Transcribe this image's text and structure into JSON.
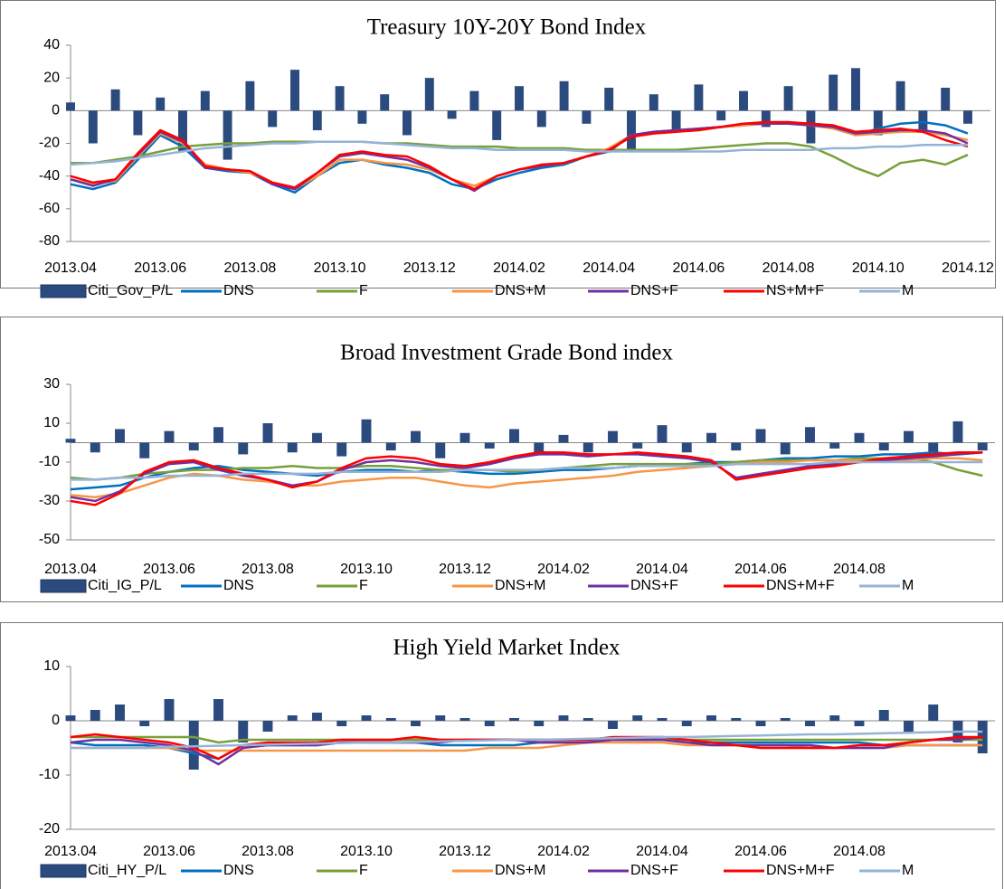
{
  "chart_data": [
    {
      "type": "combo",
      "title": "Treasury 10Y-20Y Bond Index",
      "categories": [
        "2013.04",
        null,
        null,
        null,
        "2013.06",
        null,
        null,
        null,
        "2013.08",
        null,
        null,
        null,
        "2013.10",
        null,
        null,
        null,
        "2013.12",
        null,
        null,
        null,
        "2014.02",
        null,
        null,
        null,
        "2014.04",
        null,
        null,
        null,
        "2014.06",
        null,
        null,
        null,
        "2014.08",
        null,
        null,
        null,
        "2014.10",
        null,
        null,
        null,
        "2014.12"
      ],
      "ylim": [
        -80,
        40
      ],
      "yticks": [
        -80,
        -60,
        -40,
        -20,
        0,
        20,
        40
      ],
      "series": [
        {
          "name": "Citi_Gov_P/L",
          "type": "bar",
          "color": "#2b4a7e",
          "values": [
            5,
            -20,
            13,
            -15,
            8,
            -25,
            12,
            -30,
            18,
            -10,
            25,
            -12,
            15,
            -8,
            10,
            -15,
            20,
            -5,
            12,
            -18,
            15,
            -10,
            18,
            -8,
            14,
            -25,
            10,
            -12,
            16,
            -6,
            12,
            -10,
            15,
            -20,
            22,
            26,
            -15,
            18,
            -12,
            14,
            -8
          ]
        },
        {
          "name": "DNS",
          "type": "line",
          "color": "#0070c0",
          "values": [
            -45,
            -48,
            -44,
            -30,
            -15,
            -22,
            -35,
            -37,
            -38,
            -45,
            -50,
            -40,
            -32,
            -30,
            -33,
            -35,
            -38,
            -45,
            -48,
            -42,
            -38,
            -35,
            -33,
            -28,
            -25,
            -15,
            -13,
            -12,
            -11,
            -10,
            -9,
            -8,
            -8,
            -8,
            -9,
            -15,
            -11,
            -8,
            -7,
            -9,
            -14
          ]
        },
        {
          "name": "F",
          "type": "line",
          "color": "#77a03a",
          "values": [
            -32,
            -32,
            -30,
            -28,
            -25,
            -22,
            -21,
            -20,
            -20,
            -19,
            -19,
            -19,
            -19,
            -19,
            -20,
            -20,
            -21,
            -22,
            -22,
            -22,
            -23,
            -23,
            -23,
            -24,
            -24,
            -24,
            -24,
            -24,
            -23,
            -22,
            -21,
            -20,
            -20,
            -22,
            -28,
            -35,
            -40,
            -32,
            -30,
            -33,
            -27
          ]
        },
        {
          "name": "DNS+M",
          "type": "line",
          "color": "#f79646",
          "values": [
            -42,
            -45,
            -43,
            -28,
            -14,
            -20,
            -33,
            -36,
            -38,
            -44,
            -48,
            -40,
            -30,
            -30,
            -32,
            -33,
            -36,
            -42,
            -46,
            -40,
            -36,
            -34,
            -32,
            -28,
            -23,
            -15,
            -13,
            -12,
            -11,
            -10,
            -9,
            -8,
            -8,
            -9,
            -11,
            -15,
            -14,
            -13,
            -13,
            -15,
            -18
          ]
        },
        {
          "name": "DNS+F",
          "type": "line",
          "color": "#7030a0",
          "values": [
            -42,
            -46,
            -42,
            -27,
            -13,
            -19,
            -35,
            -36,
            -37,
            -45,
            -48,
            -38,
            -28,
            -26,
            -28,
            -30,
            -35,
            -42,
            -49,
            -40,
            -36,
            -34,
            -32,
            -28,
            -25,
            -15,
            -13,
            -12,
            -11,
            -10,
            -8,
            -8,
            -8,
            -9,
            -10,
            -14,
            -13,
            -12,
            -12,
            -14,
            -20
          ]
        },
        {
          "name": "NS+M+F",
          "type": "line",
          "color": "#ff0000",
          "values": [
            -40,
            -44,
            -42,
            -26,
            -12,
            -18,
            -34,
            -36,
            -37,
            -44,
            -47,
            -38,
            -27,
            -25,
            -27,
            -28,
            -34,
            -42,
            -48,
            -40,
            -36,
            -33,
            -32,
            -28,
            -24,
            -16,
            -14,
            -13,
            -12,
            -10,
            -8,
            -7,
            -7,
            -8,
            -9,
            -13,
            -12,
            -11,
            -13,
            -18,
            -22
          ]
        },
        {
          "name": "M",
          "type": "line",
          "color": "#95b3d7",
          "values": [
            -33,
            -32,
            -31,
            -29,
            -27,
            -25,
            -23,
            -22,
            -21,
            -20,
            -20,
            -19,
            -19,
            -19,
            -20,
            -21,
            -22,
            -23,
            -23,
            -24,
            -24,
            -24,
            -24,
            -25,
            -25,
            -25,
            -25,
            -25,
            -25,
            -25,
            -24,
            -24,
            -24,
            -24,
            -23,
            -23,
            -22,
            -22,
            -21,
            -21,
            -21
          ]
        }
      ]
    },
    {
      "type": "combo",
      "title": "Broad Investment Grade Bond index",
      "categories": [
        "2013.04",
        null,
        null,
        null,
        "2013.06",
        null,
        null,
        null,
        "2013.08",
        null,
        null,
        null,
        "2013.10",
        null,
        null,
        null,
        "2013.12",
        null,
        null,
        null,
        "2014.02",
        null,
        null,
        null,
        "2014.04",
        null,
        null,
        null,
        "2014.06",
        null,
        null,
        null,
        "2014.08",
        null,
        null,
        null,
        null,
        null
      ],
      "ylim": [
        -50,
        30
      ],
      "yticks": [
        -50,
        -30,
        -10,
        10,
        30
      ],
      "series": [
        {
          "name": "Citi_IG_P/L",
          "type": "bar",
          "color": "#2b4a7e",
          "values": [
            2,
            -5,
            7,
            -8,
            6,
            -4,
            8,
            -6,
            10,
            -5,
            5,
            -7,
            12,
            -4,
            6,
            -8,
            5,
            -3,
            7,
            -6,
            4,
            -5,
            6,
            -3,
            9,
            -5,
            5,
            -4,
            7,
            -6,
            8,
            -3,
            5,
            -4,
            6,
            -5,
            11,
            -4
          ]
        },
        {
          "name": "DNS",
          "type": "line",
          "color": "#0070c0",
          "values": [
            -24,
            -23,
            -22,
            -18,
            -15,
            -13,
            -12,
            -14,
            -15,
            -16,
            -17,
            -15,
            -14,
            -14,
            -15,
            -14,
            -15,
            -16,
            -16,
            -15,
            -14,
            -14,
            -13,
            -12,
            -12,
            -11,
            -10,
            -10,
            -9,
            -8,
            -8,
            -7,
            -7,
            -6,
            -6,
            -5,
            -6,
            -5
          ]
        },
        {
          "name": "F",
          "type": "line",
          "color": "#77a03a",
          "values": [
            -18,
            -19,
            -18,
            -16,
            -15,
            -14,
            -14,
            -13,
            -13,
            -12,
            -13,
            -13,
            -12,
            -12,
            -13,
            -14,
            -14,
            -14,
            -15,
            -14,
            -13,
            -12,
            -11,
            -11,
            -11,
            -11,
            -11,
            -10,
            -9,
            -9,
            -9,
            -9,
            -8,
            -8,
            -8,
            -10,
            -14,
            -17
          ]
        },
        {
          "name": "DNS+M",
          "type": "line",
          "color": "#f79646",
          "values": [
            -27,
            -28,
            -26,
            -22,
            -18,
            -16,
            -17,
            -19,
            -20,
            -22,
            -22,
            -20,
            -19,
            -18,
            -18,
            -20,
            -22,
            -23,
            -21,
            -20,
            -19,
            -18,
            -17,
            -15,
            -14,
            -13,
            -12,
            -11,
            -10,
            -10,
            -9,
            -9,
            -9,
            -9,
            -9,
            -8,
            -8,
            -9
          ]
        },
        {
          "name": "DNS+F",
          "type": "line",
          "color": "#7030a0",
          "values": [
            -28,
            -30,
            -25,
            -16,
            -11,
            -10,
            -14,
            -17,
            -19,
            -22,
            -20,
            -14,
            -10,
            -9,
            -10,
            -12,
            -13,
            -11,
            -8,
            -6,
            -6,
            -7,
            -6,
            -6,
            -7,
            -8,
            -10,
            -18,
            -16,
            -14,
            -12,
            -11,
            -10,
            -9,
            -8,
            -7,
            -6,
            -5
          ]
        },
        {
          "name": "DNS+M+F",
          "type": "line",
          "color": "#ff0000",
          "values": [
            -30,
            -32,
            -26,
            -15,
            -10,
            -9,
            -13,
            -16,
            -19,
            -23,
            -20,
            -13,
            -8,
            -7,
            -8,
            -11,
            -12,
            -10,
            -7,
            -5,
            -5,
            -6,
            -6,
            -5,
            -6,
            -7,
            -9,
            -19,
            -17,
            -15,
            -13,
            -12,
            -10,
            -8,
            -7,
            -6,
            -5,
            -5
          ]
        },
        {
          "name": "M",
          "type": "line",
          "color": "#95b3d7",
          "values": [
            -19,
            -19,
            -18,
            -18,
            -17,
            -17,
            -17,
            -16,
            -16,
            -16,
            -16,
            -15,
            -15,
            -15,
            -15,
            -15,
            -14,
            -14,
            -14,
            -14,
            -13,
            -13,
            -13,
            -12,
            -12,
            -12,
            -12,
            -11,
            -11,
            -11,
            -11,
            -10,
            -10,
            -10,
            -10,
            -10,
            -10,
            -10
          ]
        }
      ]
    },
    {
      "type": "combo",
      "title": "High Yield Market Index",
      "categories": [
        "2013.04",
        null,
        null,
        null,
        "2013.06",
        null,
        null,
        null,
        "2013.08",
        null,
        null,
        null,
        "2013.10",
        null,
        null,
        null,
        "2013.12",
        null,
        null,
        null,
        "2014.02",
        null,
        null,
        null,
        "2014.04",
        null,
        null,
        null,
        "2014.06",
        null,
        null,
        null,
        "2014.08",
        null,
        null,
        null,
        null,
        null
      ],
      "ylim": [
        -20,
        10
      ],
      "yticks": [
        -20,
        -10,
        0,
        10
      ],
      "series": [
        {
          "name": "Citi_HY_P/L",
          "type": "bar",
          "color": "#2b4a7e",
          "values": [
            1,
            2,
            3,
            -1,
            4,
            -9,
            4,
            -4,
            -2,
            1,
            1.5,
            -1,
            1,
            0.5,
            -1,
            1,
            0.5,
            -1,
            0.5,
            -1,
            1,
            0.5,
            -1.5,
            1,
            0.5,
            -1,
            1,
            0.5,
            -1,
            0.5,
            -1,
            1,
            -1,
            2,
            -2,
            3,
            -4,
            -6
          ]
        },
        {
          "name": "DNS",
          "type": "line",
          "color": "#0070c0",
          "values": [
            -4,
            -4.5,
            -4.5,
            -4.5,
            -5,
            -6,
            -7,
            -4.5,
            -4.5,
            -4.5,
            -4.5,
            -4,
            -4,
            -4,
            -4,
            -4.5,
            -4.5,
            -4.5,
            -4.5,
            -4,
            -4,
            -4,
            -3.5,
            -3.5,
            -3.5,
            -4,
            -4,
            -4,
            -4,
            -4,
            -4,
            -4,
            -4,
            -4.5,
            -4.5,
            -4.5,
            -4.5,
            -4.5
          ]
        },
        {
          "name": "F",
          "type": "line",
          "color": "#77a03a",
          "values": [
            -3,
            -3,
            -3,
            -3,
            -3,
            -3,
            -4,
            -3.5,
            -3.5,
            -3.5,
            -3.5,
            -3.5,
            -3.5,
            -3.5,
            -3.5,
            -3.5,
            -3.5,
            -3.5,
            -3.5,
            -3.5,
            -3.5,
            -3.5,
            -3.5,
            -3.5,
            -3.5,
            -3.5,
            -3.5,
            -3.5,
            -3.5,
            -3.5,
            -3.5,
            -3.5,
            -3.5,
            -3.5,
            -3.5,
            -3.5,
            -3.5,
            -3.5
          ]
        },
        {
          "name": "DNS+M",
          "type": "line",
          "color": "#f79646",
          "values": [
            -5,
            -5,
            -5,
            -5,
            -5,
            -5.5,
            -5.5,
            -5.5,
            -5.5,
            -5.5,
            -5.5,
            -5.5,
            -5.5,
            -5.5,
            -5.5,
            -5.5,
            -5.5,
            -5,
            -5,
            -5,
            -4.5,
            -4,
            -4,
            -4,
            -4,
            -4.5,
            -4.5,
            -4.5,
            -4.5,
            -4.5,
            -5,
            -5,
            -5,
            -5,
            -4.5,
            -4.5,
            -4.5,
            -4.5
          ]
        },
        {
          "name": "DNS+F",
          "type": "line",
          "color": "#7030a0",
          "values": [
            -4,
            -3.5,
            -3.5,
            -4,
            -4.5,
            -5.5,
            -8,
            -5,
            -4.5,
            -4.5,
            -4.5,
            -4,
            -4,
            -4,
            -4,
            -4,
            -3.5,
            -3.5,
            -3.5,
            -4,
            -4,
            -4,
            -3.5,
            -3.5,
            -3.5,
            -4,
            -4.5,
            -4.5,
            -4.5,
            -4.5,
            -4.5,
            -5,
            -5,
            -5,
            -4,
            -3.5,
            -3.5,
            -3
          ]
        },
        {
          "name": "DNS+M+F",
          "type": "line",
          "color": "#ff0000",
          "values": [
            -3,
            -2.5,
            -3,
            -3.5,
            -4,
            -5,
            -7,
            -4.5,
            -4,
            -4,
            -4,
            -3.5,
            -3.5,
            -3.5,
            -3,
            -3.5,
            -3.5,
            -3.5,
            -3.5,
            -3.5,
            -3.5,
            -3.5,
            -3,
            -3,
            -3,
            -3.5,
            -4,
            -4.5,
            -5,
            -5,
            -5,
            -5,
            -4.5,
            -4.5,
            -4,
            -3.5,
            -3,
            -3
          ]
        },
        {
          "name": "M",
          "type": "line",
          "color": "#95b3d7",
          "values": [
            -5,
            -5,
            -5,
            -5,
            -4.8,
            -4.7,
            -4.6,
            -4.5,
            -4.4,
            -4.3,
            -4.2,
            -4.1,
            -4,
            -4,
            -3.9,
            -3.8,
            -3.7,
            -3.6,
            -3.5,
            -3.5,
            -3.4,
            -3.3,
            -3.2,
            -3.1,
            -3,
            -3,
            -2.9,
            -2.8,
            -2.7,
            -2.6,
            -2.5,
            -2.5,
            -2.4,
            -2.3,
            -2.2,
            -2.1,
            -2,
            -2
          ]
        }
      ]
    }
  ]
}
